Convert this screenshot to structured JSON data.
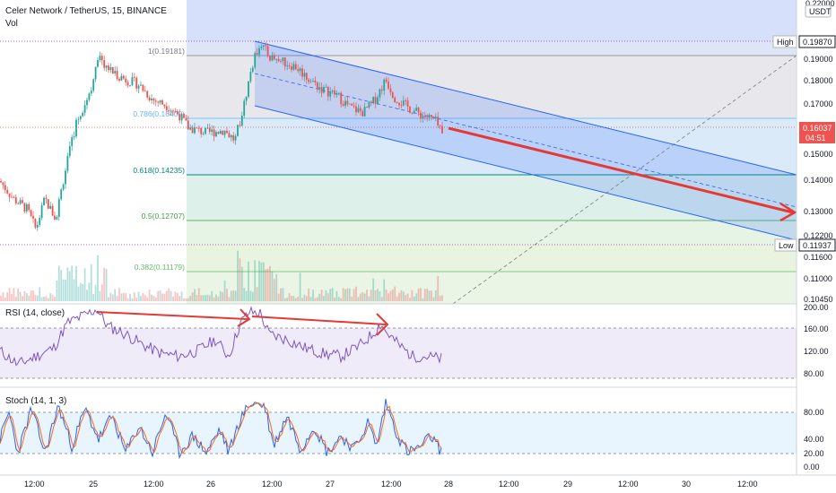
{
  "header": {
    "title": "Celer Network / TetherUS, 15, BINANCE",
    "volume_label": "Vol",
    "currency": "USDT"
  },
  "colors": {
    "up": "#26a69a",
    "down": "#ef5350",
    "channel_line": "#2962ff",
    "arrow": "#e53935",
    "rsi_line": "#7e57c2",
    "stoch_k": "#2962ff",
    "stoch_d": "#ff6d00"
  },
  "price_axis": {
    "ticks": [
      "0.22000",
      "0.19000",
      "0.18000",
      "0.17000",
      "0.15000",
      "0.14000",
      "0.13000",
      "0.12200",
      "0.11600",
      "0.11000",
      "0.10450"
    ],
    "high_label": "High",
    "high_value": "0.19870",
    "low_label": "Low",
    "low_value": "0.11937",
    "current_price": "0.16037",
    "countdown": "04:51"
  },
  "fib_levels": [
    {
      "label": "1(0.19181)",
      "value": 0.19181
    },
    {
      "label": "0.786(0.16400)",
      "value": 0.164
    },
    {
      "label": "0.618(0.14235)",
      "value": 0.14235
    },
    {
      "label": "0.5(0.12707)",
      "value": 0.12707
    },
    {
      "label": "0.382(0.11179)",
      "value": 0.11179
    }
  ],
  "rsi": {
    "label": "RSI (14, close)",
    "ticks": [
      "200.00",
      "160.00",
      "120.00",
      "80.00"
    ]
  },
  "stoch": {
    "label": "Stoch (14, 1, 3)",
    "ticks": [
      "80.00",
      "40.00",
      "20.00",
      "0.00"
    ]
  },
  "time_axis": {
    "ticks": [
      "12:00",
      "25",
      "12:00",
      "26",
      "12:00",
      "27",
      "12:00",
      "28",
      "12:00",
      "29",
      "12:00",
      "30",
      "12:00"
    ]
  },
  "chart_data": {
    "type": "candlestick",
    "symbol": "Celer Network / TetherUS",
    "interval": "15",
    "exchange": "BINANCE",
    "y_range": [
      0.1045,
      0.2
    ],
    "price_path": [
      [
        0,
        0.142
      ],
      [
        15,
        0.135
      ],
      [
        30,
        0.131
      ],
      [
        40,
        0.123
      ],
      [
        50,
        0.135
      ],
      [
        62,
        0.127
      ],
      [
        72,
        0.145
      ],
      [
        85,
        0.165
      ],
      [
        100,
        0.177
      ],
      [
        110,
        0.19
      ],
      [
        125,
        0.185
      ],
      [
        140,
        0.182
      ],
      [
        155,
        0.18
      ],
      [
        170,
        0.174
      ],
      [
        185,
        0.172
      ],
      [
        200,
        0.168
      ],
      [
        210,
        0.163
      ],
      [
        230,
        0.161
      ],
      [
        250,
        0.162
      ],
      [
        262,
        0.158
      ],
      [
        272,
        0.172
      ],
      [
        280,
        0.186
      ],
      [
        290,
        0.197
      ],
      [
        300,
        0.191
      ],
      [
        315,
        0.189
      ],
      [
        330,
        0.187
      ],
      [
        345,
        0.182
      ],
      [
        360,
        0.178
      ],
      [
        375,
        0.176
      ],
      [
        390,
        0.171
      ],
      [
        405,
        0.169
      ],
      [
        418,
        0.174
      ],
      [
        430,
        0.182
      ],
      [
        440,
        0.175
      ],
      [
        455,
        0.171
      ],
      [
        470,
        0.168
      ],
      [
        485,
        0.166
      ],
      [
        493,
        0.16
      ]
    ],
    "channel": {
      "upper": [
        [
          284,
          0.198
        ],
        [
          888,
          0.141
        ]
      ],
      "lower": [
        [
          284,
          0.172
        ],
        [
          888,
          0.119
        ]
      ]
    },
    "fibonacci": [
      {
        "ratio": 1,
        "price": 0.19181
      },
      {
        "ratio": 0.786,
        "price": 0.164
      },
      {
        "ratio": 0.618,
        "price": 0.14235
      },
      {
        "ratio": 0.5,
        "price": 0.12707
      },
      {
        "ratio": 0.382,
        "price": 0.11179
      }
    ],
    "rsi_path": [
      [
        0,
        120
      ],
      [
        20,
        95
      ],
      [
        40,
        110
      ],
      [
        60,
        125
      ],
      [
        75,
        170
      ],
      [
        95,
        185
      ],
      [
        108,
        195
      ],
      [
        120,
        165
      ],
      [
        140,
        150
      ],
      [
        160,
        130
      ],
      [
        180,
        115
      ],
      [
        200,
        110
      ],
      [
        220,
        120
      ],
      [
        240,
        140
      ],
      [
        255,
        110
      ],
      [
        268,
        170
      ],
      [
        278,
        190
      ],
      [
        290,
        188
      ],
      [
        300,
        150
      ],
      [
        320,
        140
      ],
      [
        340,
        125
      ],
      [
        360,
        115
      ],
      [
        380,
        110
      ],
      [
        400,
        128
      ],
      [
        415,
        150
      ],
      [
        425,
        170
      ],
      [
        430,
        155
      ],
      [
        445,
        130
      ],
      [
        460,
        110
      ],
      [
        475,
        110
      ],
      [
        493,
        105
      ]
    ],
    "stoch_k_path": [
      [
        0,
        40
      ],
      [
        10,
        80
      ],
      [
        20,
        20
      ],
      [
        35,
        85
      ],
      [
        50,
        20
      ],
      [
        65,
        90
      ],
      [
        80,
        30
      ],
      [
        95,
        85
      ],
      [
        110,
        40
      ],
      [
        125,
        75
      ],
      [
        140,
        20
      ],
      [
        155,
        60
      ],
      [
        170,
        20
      ],
      [
        185,
        80
      ],
      [
        200,
        20
      ],
      [
        215,
        45
      ],
      [
        230,
        20
      ],
      [
        245,
        55
      ],
      [
        255,
        20
      ],
      [
        268,
        70
      ],
      [
        280,
        95
      ],
      [
        295,
        90
      ],
      [
        305,
        30
      ],
      [
        320,
        75
      ],
      [
        335,
        25
      ],
      [
        350,
        60
      ],
      [
        365,
        20
      ],
      [
        380,
        45
      ],
      [
        395,
        25
      ],
      [
        410,
        65
      ],
      [
        420,
        30
      ],
      [
        430,
        95
      ],
      [
        445,
        40
      ],
      [
        455,
        20
      ],
      [
        470,
        30
      ],
      [
        480,
        45
      ],
      [
        493,
        20
      ]
    ]
  }
}
